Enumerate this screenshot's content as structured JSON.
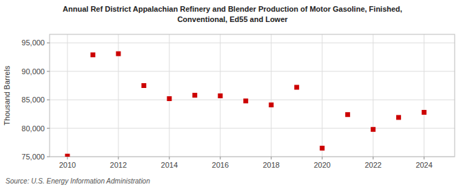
{
  "chart_data": {
    "type": "scatter",
    "title": "Annual Ref District Appalachian Refinery and Blender Production of Motor Gasoline, Finished,",
    "subtitle": "Conventional, Ed55 and Lower",
    "ylabel": "Thousand Barrels",
    "annotations": [
      "Source: U.S. Energy Information Administration"
    ],
    "x": [
      2010,
      2011,
      2012,
      2013,
      2014,
      2015,
      2016,
      2017,
      2018,
      2019,
      2020,
      2021,
      2022,
      2023,
      2024
    ],
    "values": [
      75100,
      92900,
      93100,
      87500,
      85200,
      85800,
      85700,
      84800,
      84100,
      87200,
      76500,
      82400,
      79800,
      81900,
      82800
    ],
    "color": "#cc0000",
    "marker": "square",
    "xlim": [
      2009.3,
      2025.2
    ],
    "xticks": [
      2010,
      2012,
      2014,
      2016,
      2018,
      2020,
      2022,
      2024
    ],
    "ylim": [
      75000,
      96500
    ],
    "yticks": [
      {
        "value": 75000,
        "label": "75,000"
      },
      {
        "value": 80000,
        "label": "80,000"
      },
      {
        "value": 85000,
        "label": "85,000"
      },
      {
        "value": 90000,
        "label": "90,000"
      },
      {
        "value": 95000,
        "label": "95,000"
      }
    ],
    "grid": true
  }
}
